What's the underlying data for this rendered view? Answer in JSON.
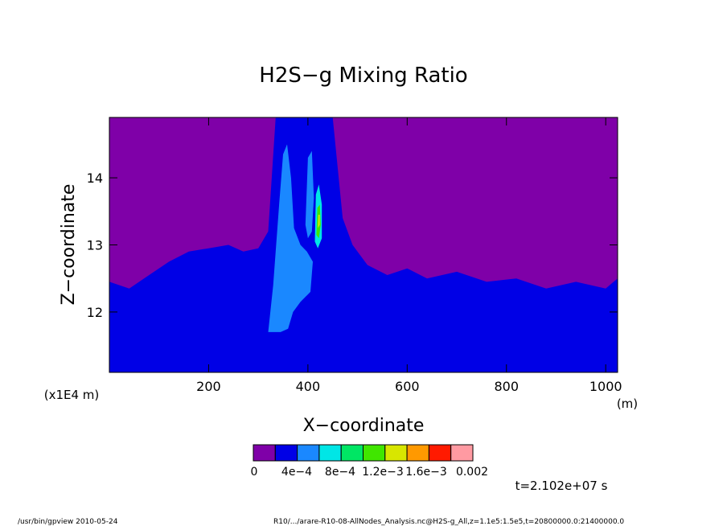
{
  "chart_data": {
    "type": "heatmap",
    "title": "H2S−g Mixing Ratio",
    "xlabel": "X−coordinate",
    "ylabel": "Z−coordinate",
    "x_unit": "(m)",
    "y_unit": "(x1E4 m)",
    "xlim": [
      0,
      1024
    ],
    "ylim": [
      11.1,
      14.9
    ],
    "x_ticks": [
      200,
      400,
      600,
      800,
      1000
    ],
    "y_ticks": [
      12,
      13,
      14
    ],
    "colorbar": {
      "labels": [
        "0",
        "4e−4",
        "8e−4",
        "1.2e−3",
        "1.6e−3",
        "0.002"
      ],
      "levels": [
        0,
        0.0004,
        0.0008,
        0.0012,
        0.0016,
        0.002
      ],
      "colors": [
        "#7f00a8",
        "#0000e6",
        "#1a88ff",
        "#00e6e6",
        "#00e664",
        "#40e600",
        "#d8e600",
        "#ff9900",
        "#ff1a00",
        "#ff9aa2"
      ]
    },
    "regions": {
      "background_color": "#7f00a8",
      "base_color": "#0000e6",
      "plume_color": "#1a88ff",
      "core_color": "#00e6e6",
      "hot_color": "#40e600",
      "peak_color": "#d8e600",
      "base_top": [
        [
          0,
          12.45
        ],
        [
          40,
          12.35
        ],
        [
          80,
          12.55
        ],
        [
          120,
          12.75
        ],
        [
          160,
          12.9
        ],
        [
          200,
          12.95
        ],
        [
          240,
          13.0
        ],
        [
          270,
          12.9
        ],
        [
          300,
          12.95
        ],
        [
          320,
          13.2
        ],
        [
          335,
          14.9
        ],
        [
          390,
          14.9
        ],
        [
          400,
          14.9
        ],
        [
          450,
          14.9
        ],
        [
          470,
          13.4
        ],
        [
          490,
          13.0
        ],
        [
          520,
          12.7
        ],
        [
          560,
          12.55
        ],
        [
          600,
          12.65
        ],
        [
          640,
          12.5
        ],
        [
          700,
          12.6
        ],
        [
          760,
          12.45
        ],
        [
          820,
          12.5
        ],
        [
          880,
          12.35
        ],
        [
          940,
          12.45
        ],
        [
          1000,
          12.35
        ],
        [
          1024,
          12.5
        ]
      ]
    }
  },
  "time_label": "t=2.102e+07 s",
  "footer_left": "/usr/bin/gpview  2010-05-24",
  "footer_right": "R10/.../arare-R10-08-AllNodes_Analysis.nc@H2S-g_All,z=1.1e5:1.5e5,t=20800000.0:21400000.0"
}
